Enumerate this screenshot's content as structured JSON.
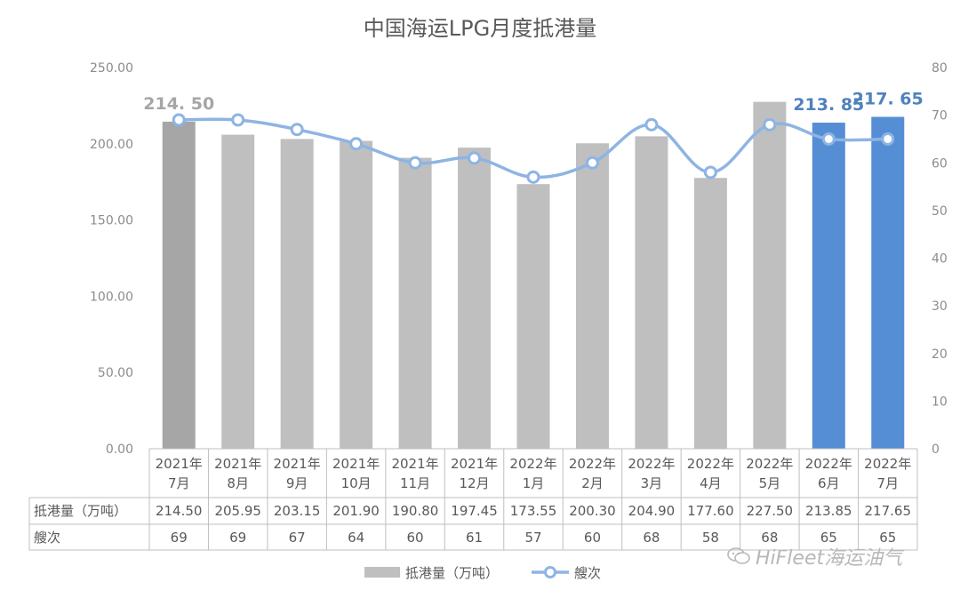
{
  "watermark": {
    "text": "HiFleet海运油气",
    "icon": "wechat-icon"
  },
  "chart_data": {
    "type": "bar+line",
    "title": "中国海运LPG月度抵港量",
    "categories": [
      [
        "2021年",
        "7月"
      ],
      [
        "2021年",
        "8月"
      ],
      [
        "2021年",
        "9月"
      ],
      [
        "2021年",
        "10月"
      ],
      [
        "2021年",
        "11月"
      ],
      [
        "2021年",
        "12月"
      ],
      [
        "2022年",
        "1月"
      ],
      [
        "2022年",
        "2月"
      ],
      [
        "2022年",
        "3月"
      ],
      [
        "2022年",
        "4月"
      ],
      [
        "2022年",
        "5月"
      ],
      [
        "2022年",
        "6月"
      ],
      [
        "2022年",
        "7月"
      ]
    ],
    "y_left": {
      "min": 0,
      "max": 250,
      "step": 50,
      "ticks": [
        "0.00",
        "50.00",
        "100.00",
        "150.00",
        "200.00",
        "250.00"
      ]
    },
    "y_right": {
      "min": 0,
      "max": 80,
      "step": 10,
      "ticks": [
        "0",
        "10",
        "20",
        "30",
        "40",
        "50",
        "60",
        "70",
        "80"
      ]
    },
    "grid": false,
    "legend_position": "bottom",
    "series": [
      {
        "name": "抵港量（万吨）",
        "type": "bar",
        "axis": "left",
        "color": "#bfbfbf",
        "values": [
          214.5,
          205.95,
          203.15,
          201.9,
          190.8,
          197.45,
          173.55,
          200.3,
          204.9,
          177.6,
          227.5,
          213.85,
          217.65
        ],
        "value_labels": [
          "214.50",
          "205.95",
          "203.15",
          "201.90",
          "190.80",
          "197.45",
          "173.55",
          "200.30",
          "204.90",
          "177.60",
          "227.50",
          "213.85",
          "217.65"
        ],
        "bar_colors": [
          "#a6a6a6",
          "#bfbfbf",
          "#bfbfbf",
          "#bfbfbf",
          "#bfbfbf",
          "#bfbfbf",
          "#bfbfbf",
          "#bfbfbf",
          "#bfbfbf",
          "#bfbfbf",
          "#bfbfbf",
          "#558ed5",
          "#558ed5"
        ]
      },
      {
        "name": "艘次",
        "type": "line",
        "axis": "right",
        "color": "#8eb4e3",
        "smooth": true,
        "values": [
          69,
          69,
          67,
          64,
          60,
          61,
          57,
          60,
          68,
          58,
          68,
          65,
          65
        ],
        "value_labels": [
          "69",
          "69",
          "67",
          "64",
          "60",
          "61",
          "57",
          "60",
          "68",
          "58",
          "68",
          "65",
          "65"
        ]
      }
    ],
    "annotations": [
      {
        "index": 0,
        "text": "214. 50",
        "color": "#a6a6a6"
      },
      {
        "index": 11,
        "text": "213. 85",
        "color": "#4f81bd"
      },
      {
        "index": 12,
        "text": "217. 65",
        "color": "#4f81bd"
      }
    ]
  }
}
